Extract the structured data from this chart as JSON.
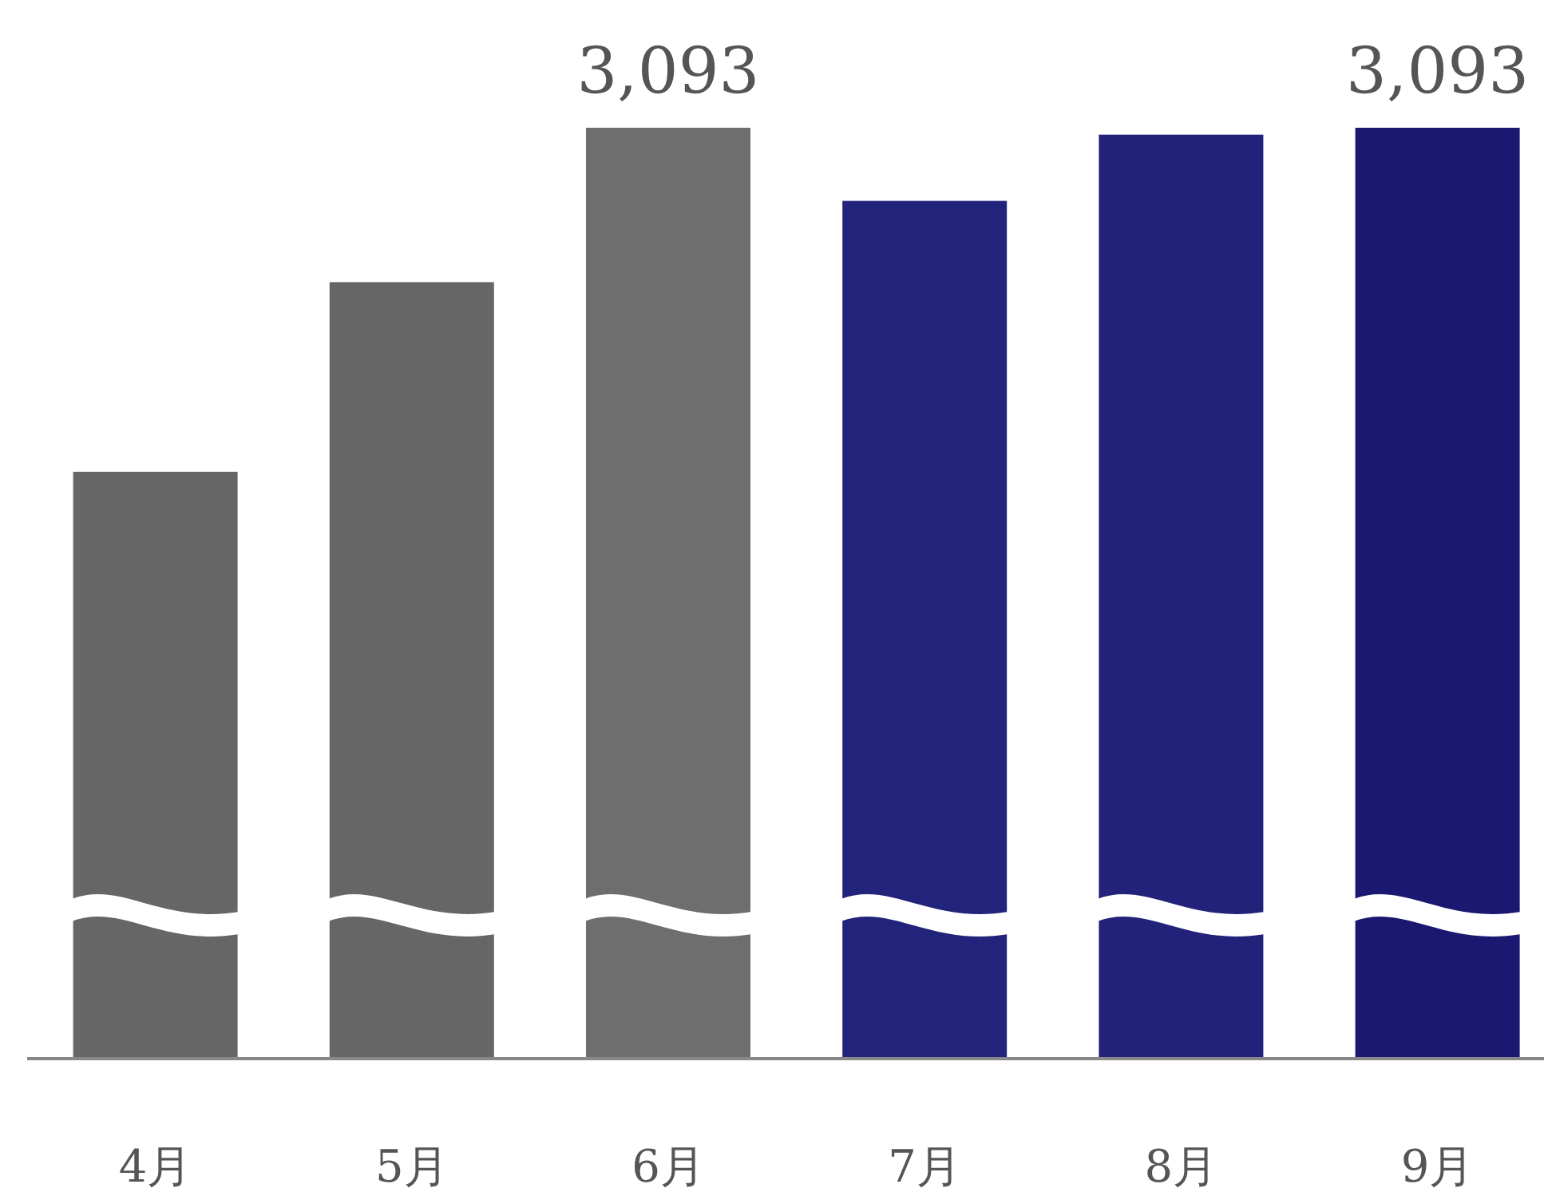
{
  "chart_data": {
    "type": "bar",
    "categories": [
      "4月",
      "5月",
      "6月",
      "7月",
      "8月",
      "9月"
    ],
    "values": [
      1950,
      2580,
      3093,
      2850,
      3070,
      3093
    ],
    "value_labels": [
      null,
      null,
      "3,093",
      null,
      null,
      "3,093"
    ],
    "colors": [
      "#666666",
      "#666666",
      "#6e6e6e",
      "#22237a",
      "#22227a",
      "#1a1870"
    ]
  }
}
